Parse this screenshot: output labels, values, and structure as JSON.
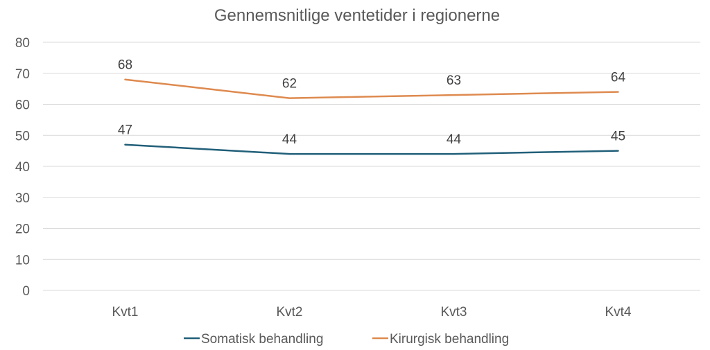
{
  "chart_data": {
    "type": "line",
    "title": "Gennemsnitlige ventetider i regionerne",
    "categories": [
      "Kvt1",
      "Kvt2",
      "Kvt3",
      "Kvt4"
    ],
    "series": [
      {
        "name": "Somatisk behandling",
        "values": [
          47,
          44,
          44,
          45
        ],
        "color": "#215f79"
      },
      {
        "name": "Kirurgisk behandling",
        "values": [
          68,
          62,
          63,
          64
        ],
        "color": "#de8a4f"
      }
    ],
    "yticks": [
      0,
      10,
      20,
      30,
      40,
      50,
      60,
      70,
      80
    ],
    "ylim": [
      0,
      80
    ],
    "grid": true,
    "legend": "bottom"
  }
}
